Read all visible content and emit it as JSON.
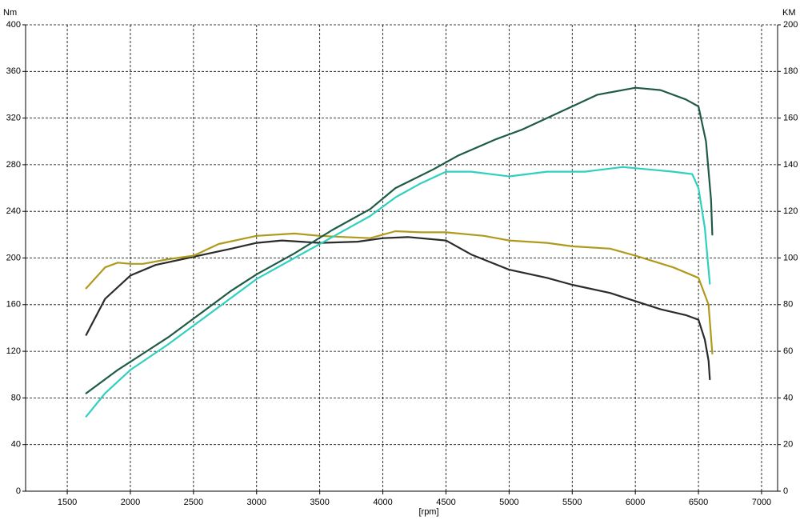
{
  "chart_data": {
    "type": "line",
    "y_label": "Nm",
    "y2_label": "KM",
    "x_label": "[rpm]",
    "xlim": [
      1170,
      7127
    ],
    "xticks": [
      1500,
      2000,
      2500,
      3000,
      3500,
      4000,
      4500,
      5000,
      5500,
      6000,
      6500,
      7000
    ],
    "ylim": [
      0,
      400
    ],
    "yticks": [
      0,
      40,
      80,
      120,
      160,
      200,
      240,
      280,
      320,
      360,
      400
    ],
    "y2lim": [
      0,
      200
    ],
    "y2ticks": [
      0,
      20,
      40,
      60,
      80,
      100,
      120,
      140,
      160,
      180,
      200
    ],
    "grid": true,
    "series": [
      {
        "color": "#2b2b2b",
        "axis": "y",
        "x": [
          1650,
          1800,
          2000,
          2200,
          2500,
          2800,
          3000,
          3200,
          3500,
          3800,
          4000,
          4200,
          4500,
          4700,
          5000,
          5300,
          5500,
          5800,
          6000,
          6200,
          6400,
          6500,
          6550,
          6580,
          6590
        ],
        "values": [
          134,
          165,
          185,
          194,
          201,
          208,
          213,
          215,
          213,
          214,
          217,
          218,
          215,
          203,
          190,
          183,
          177,
          170,
          163,
          156,
          151,
          147,
          130,
          112,
          96
        ]
      },
      {
        "color": "#b09a1e",
        "axis": "y",
        "x": [
          1650,
          1800,
          1900,
          2000,
          2100,
          2300,
          2500,
          2700,
          3000,
          3300,
          3500,
          3700,
          3900,
          4100,
          4300,
          4500,
          4800,
          5000,
          5300,
          5500,
          5800,
          6000,
          6300,
          6500,
          6580,
          6610
        ],
        "values": [
          174,
          192,
          196,
          195,
          195,
          199,
          202,
          212,
          219,
          221,
          219,
          218,
          217,
          223,
          222,
          222,
          219,
          215,
          213,
          210,
          208,
          202,
          192,
          183,
          160,
          118
        ]
      },
      {
        "color": "#1f5a47",
        "axis": "y2",
        "x": [
          1650,
          1900,
          2100,
          2300,
          2500,
          2800,
          3000,
          3300,
          3600,
          3900,
          4100,
          4400,
          4600,
          4900,
          5100,
          5300,
          5500,
          5700,
          6000,
          6200,
          6400,
          6500,
          6560,
          6600,
          6610
        ],
        "values": [
          42,
          52,
          59,
          66,
          74,
          86,
          93,
          102,
          112,
          121,
          130,
          138,
          144,
          151,
          155,
          160,
          165,
          170,
          173,
          172,
          168,
          165,
          150,
          125,
          110
        ]
      },
      {
        "color": "#2fd0c0",
        "axis": "y2",
        "x": [
          1650,
          1800,
          2000,
          2300,
          2500,
          2800,
          3000,
          3300,
          3600,
          3900,
          4100,
          4300,
          4500,
          4700,
          5000,
          5300,
          5600,
          5900,
          6100,
          6300,
          6450,
          6500,
          6550,
          6590
        ],
        "values": [
          32,
          42,
          52,
          63,
          71,
          83,
          91,
          100,
          109,
          118,
          126,
          132,
          137,
          137,
          135,
          137,
          137,
          139,
          138,
          137,
          136,
          130,
          113,
          89
        ]
      }
    ]
  }
}
